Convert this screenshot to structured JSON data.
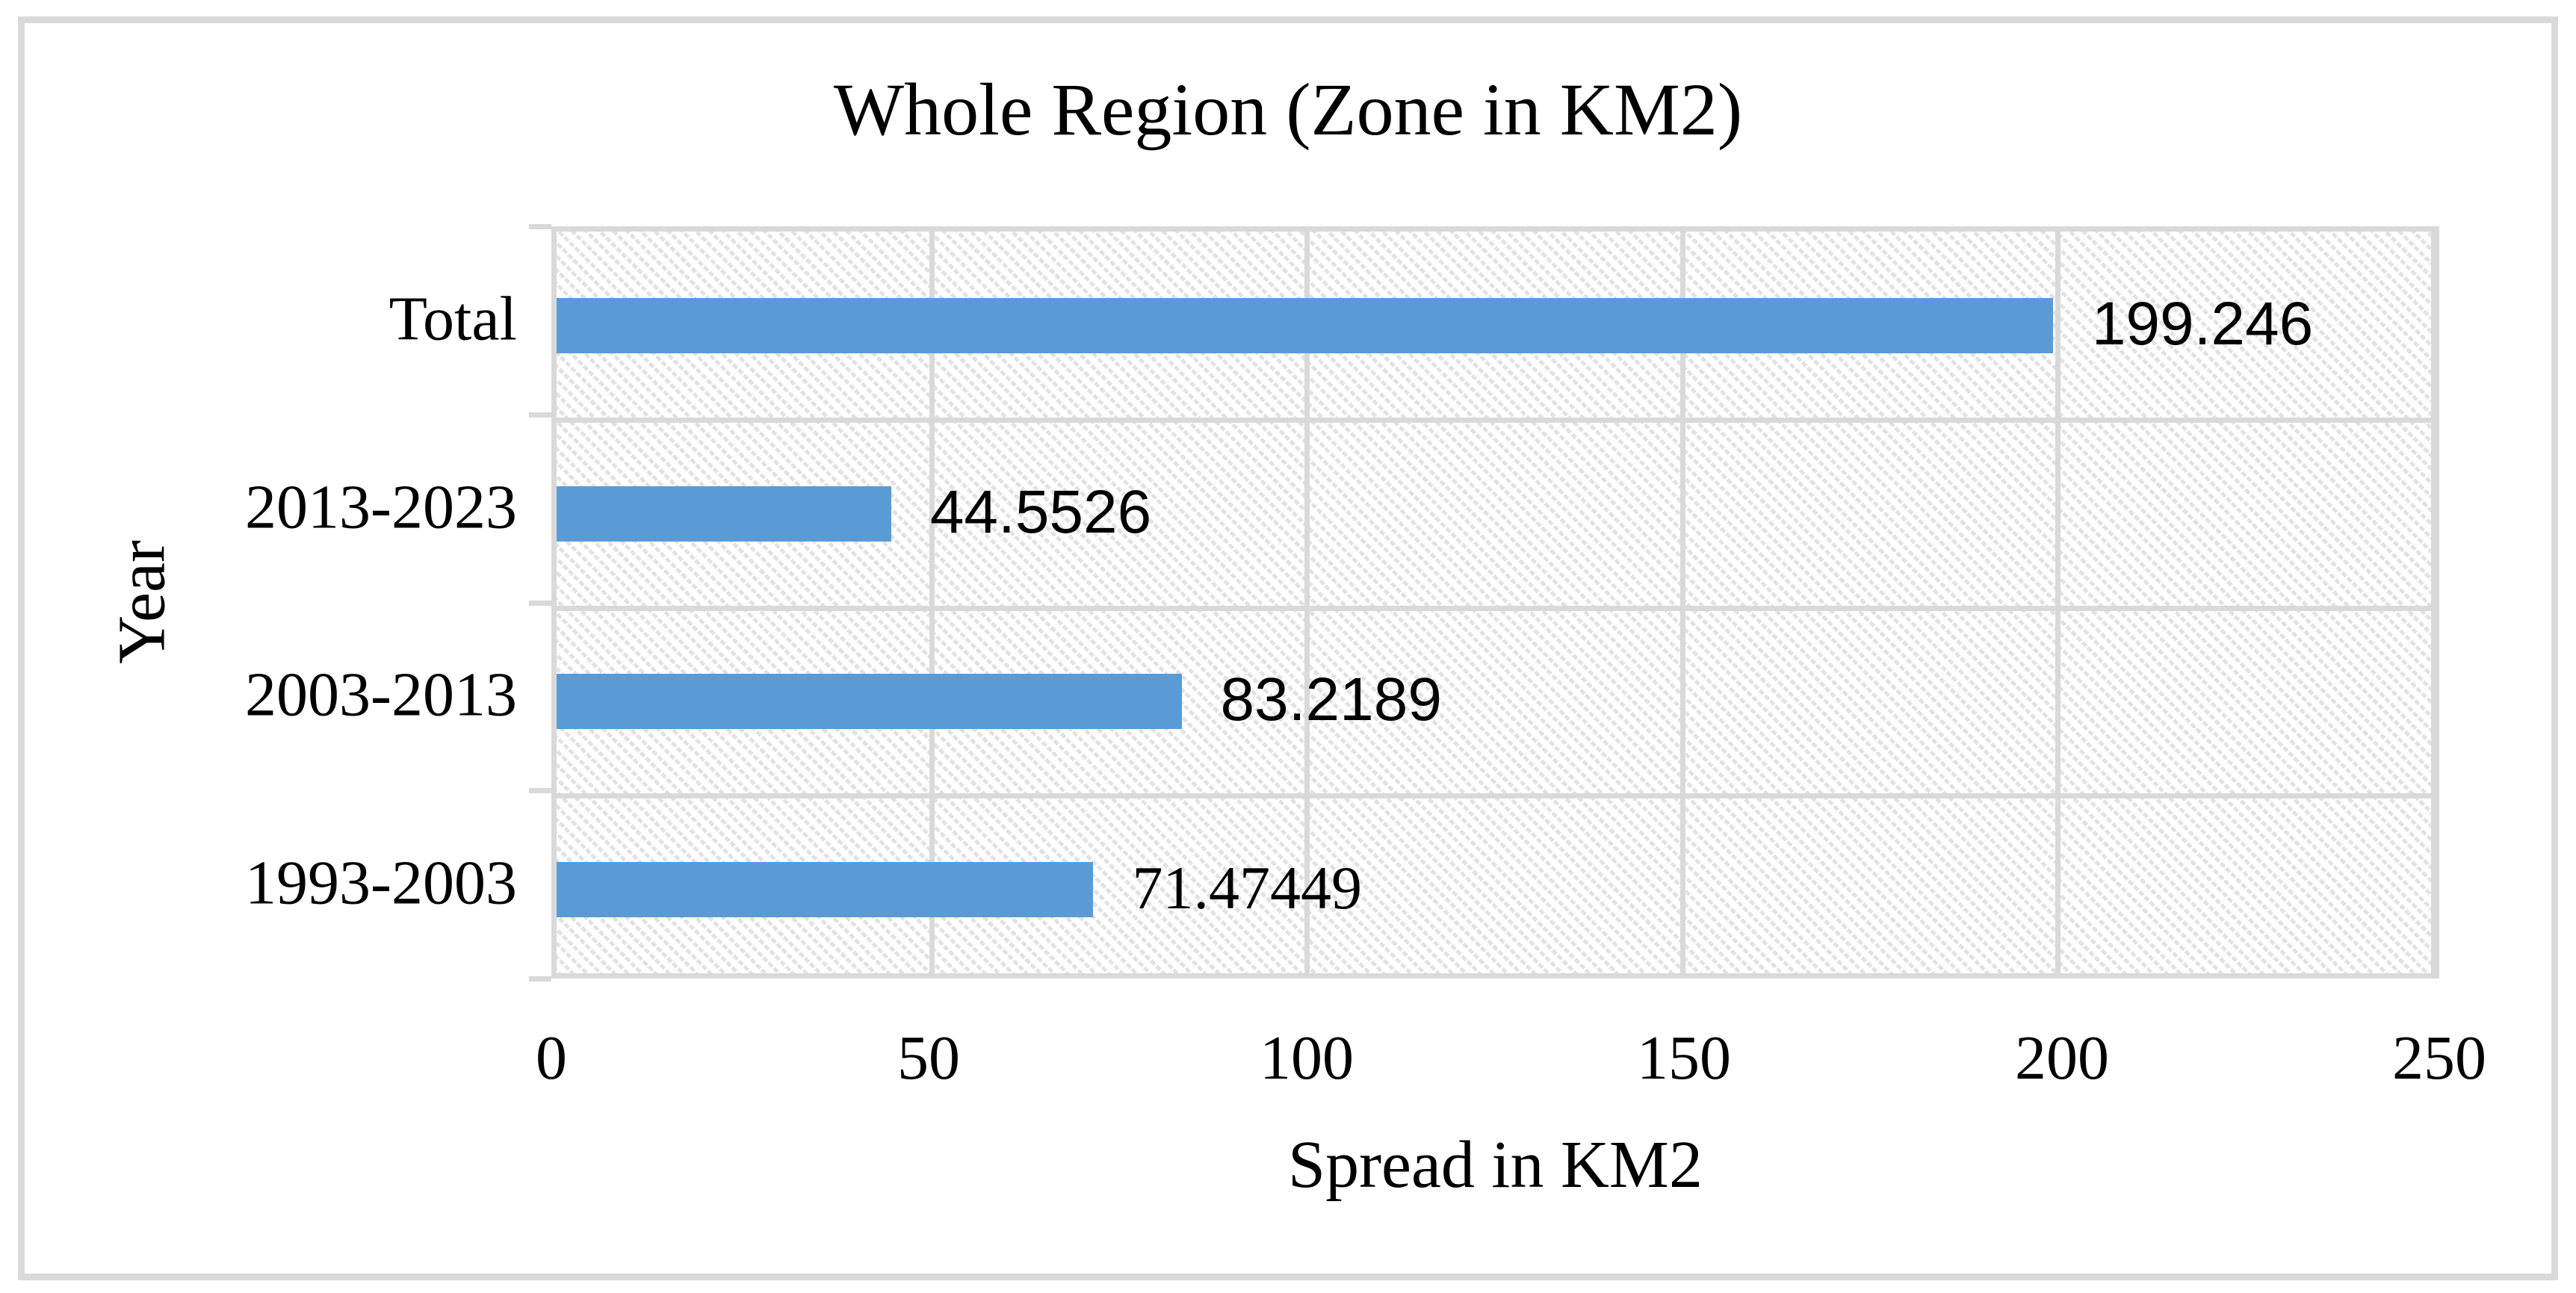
{
  "chart_data": {
    "type": "bar",
    "orientation": "horizontal",
    "title": "Whole Region (Zone in KM2)",
    "xlabel": "Spread in KM2",
    "ylabel": "Year",
    "categories": [
      "Total",
      "2013-2023",
      "2003-2013",
      "1993-2003"
    ],
    "values": [
      199.246,
      44.5526,
      83.2189,
      71.47449
    ],
    "data_labels": [
      "199.246",
      "44.5526",
      "83.2189",
      "71.47449"
    ],
    "serif_label_indices": [
      3
    ],
    "xlim": [
      0,
      250
    ],
    "x_ticks": [
      0,
      50,
      100,
      150,
      200,
      250
    ],
    "x_tick_labels": [
      "0",
      "50",
      "100",
      "150",
      "200",
      "250"
    ],
    "grid": true,
    "legend": false,
    "plot_background": "light-diagonal-hatch",
    "colors": {
      "bar": "#5B9BD5",
      "gridline": "#D9D9D9",
      "hatch": "#E2E2E2",
      "text": "#000000",
      "frame": "#D9D9D9"
    }
  }
}
